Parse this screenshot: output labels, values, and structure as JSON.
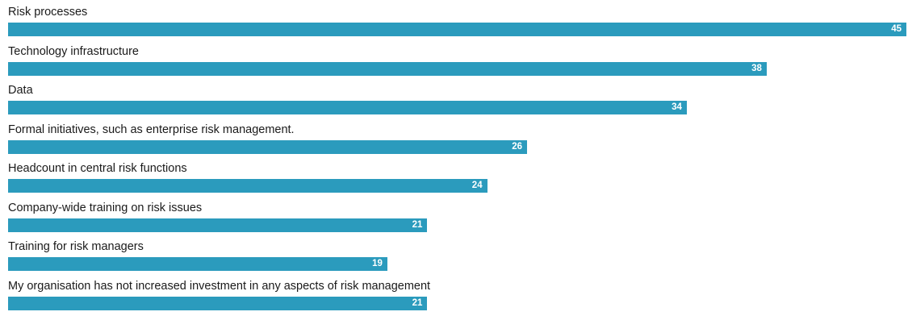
{
  "chart_data": {
    "type": "bar",
    "orientation": "horizontal",
    "title": "",
    "xlabel": "",
    "ylabel": "",
    "xlim": [
      0,
      45
    ],
    "grid": false,
    "legend": "none",
    "bar_color": "#2b9bbd",
    "label_color": "#1a1a1a",
    "value_label_color": "#ffffff",
    "categories": [
      "Risk processes",
      "Technology infrastructure",
      "Data",
      "Formal initiatives, such as enterprise risk management.",
      "Headcount in central risk functions",
      "Company-wide training on risk issues",
      "Training for risk managers",
      "My organisation has not increased investment in any aspects of risk management"
    ],
    "values": [
      45,
      38,
      34,
      26,
      24,
      21,
      19,
      21
    ]
  }
}
